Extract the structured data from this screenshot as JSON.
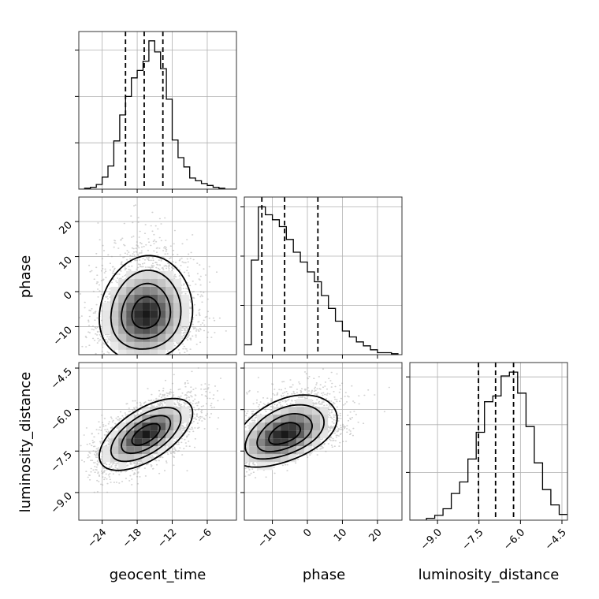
{
  "chart_data": {
    "type": "corner",
    "parameters": [
      "geocent_time",
      "phase",
      "luminosity_distance"
    ],
    "grid": true,
    "ranges": {
      "geocent_time": [
        -28,
        -1
      ],
      "phase": [
        -18,
        27
      ],
      "luminosity_distance": [
        -10.0,
        -4.3
      ]
    },
    "ticks": {
      "geocent_time": [
        "−24",
        "−18",
        "−12",
        "−6"
      ],
      "phase": [
        "−10",
        "0",
        "10",
        "20"
      ],
      "luminosity_distance": [
        "−9.0",
        "−7.5",
        "−6.0",
        "−4.5"
      ]
    },
    "tick_values": {
      "geocent_time": [
        -24,
        -18,
        -12,
        -6
      ],
      "phase": [
        -10,
        0,
        10,
        20
      ],
      "luminosity_distance": [
        -9.0,
        -7.5,
        -6.0,
        -4.5
      ]
    },
    "marginals": [
      {
        "parameter": "geocent_time",
        "bin_edges": [
          -28,
          -27,
          -26,
          -25,
          -24,
          -23,
          -22,
          -21,
          -20,
          -19,
          -18,
          -17,
          -16,
          -15,
          -14,
          -13,
          -12,
          -11,
          -10,
          -9,
          -8,
          -7,
          -6,
          -5,
          -4,
          -3,
          -2,
          -1
        ],
        "counts": [
          0,
          1,
          2,
          5,
          13,
          25,
          52,
          80,
          100,
          120,
          128,
          138,
          160,
          148,
          130,
          97,
          53,
          34,
          24,
          12,
          9,
          6,
          4,
          2,
          1,
          0,
          0
        ],
        "quantiles": [
          -20.0,
          -16.8,
          -13.6
        ],
        "ymax": 170
      },
      {
        "parameter": "phase",
        "bin_edges": [
          -18,
          -16,
          -14,
          -12,
          -10,
          -8,
          -6,
          -4,
          -2,
          0,
          2,
          4,
          6,
          8,
          10,
          12,
          14,
          16,
          18,
          20,
          22,
          24,
          26
        ],
        "counts": [
          10,
          96,
          150,
          142,
          137,
          130,
          117,
          104,
          94,
          84,
          74,
          60,
          47,
          34,
          24,
          18,
          13,
          9,
          5,
          2,
          2,
          1
        ],
        "quantiles": [
          -13.0,
          -6.5,
          3.0
        ],
        "ymax": 160
      },
      {
        "parameter": "luminosity_distance",
        "bin_edges": [
          -10.0,
          -9.7,
          -9.4,
          -9.1,
          -8.8,
          -8.5,
          -8.2,
          -7.9,
          -7.6,
          -7.3,
          -7.0,
          -6.7,
          -6.4,
          -6.1,
          -5.8,
          -5.5,
          -5.2,
          -4.9,
          -4.6,
          -4.3
        ],
        "counts": [
          0,
          0,
          2,
          5,
          12,
          28,
          40,
          64,
          92,
          124,
          130,
          151,
          155,
          133,
          98,
          60,
          32,
          16,
          6
        ],
        "quantiles": [
          -7.52,
          -6.9,
          -6.25
        ],
        "ymax": 165
      }
    ],
    "joint": [
      {
        "x": "geocent_time",
        "y": "phase",
        "mean": [
          -16.5,
          -6.5
        ],
        "sd": [
          4.0,
          7.5
        ],
        "rho": 0.08,
        "skew_y": true
      },
      {
        "x": "geocent_time",
        "y": "luminosity_distance",
        "mean": [
          -16.5,
          -6.9
        ],
        "sd": [
          4.0,
          0.65
        ],
        "rho": 0.6,
        "skew_y": false
      },
      {
        "x": "phase",
        "y": "luminosity_distance",
        "mean": [
          -6.5,
          -6.9
        ],
        "sd": [
          7.5,
          0.65
        ],
        "rho": 0.45,
        "skew_y": true
      }
    ],
    "contour_levels": [
      "0.5-sigma",
      "1-sigma",
      "1.5-sigma",
      "2-sigma"
    ]
  }
}
